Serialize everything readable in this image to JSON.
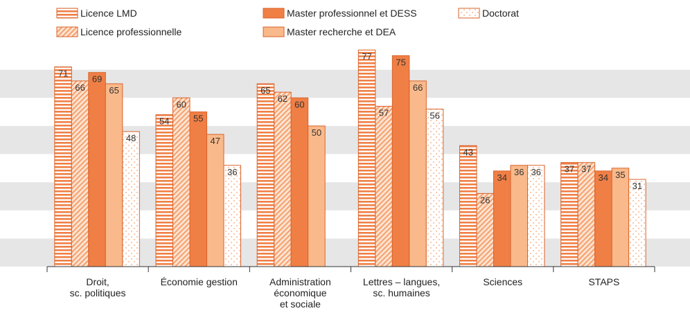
{
  "chart_data": {
    "type": "bar",
    "categories": [
      "Droit,\nsc. politiques",
      "Économie gestion",
      "Administration\néconomique\net sociale",
      "Lettres – langues,\nsc. humaines",
      "Sciences",
      "STAPS"
    ],
    "series": [
      {
        "name": "Licence LMD",
        "color": "#f07f45",
        "pattern": "stripes",
        "values": [
          71,
          54,
          65,
          77,
          43,
          37
        ]
      },
      {
        "name": "Licence professionnelle",
        "color": "#f5a06e",
        "pattern": "hatch",
        "values": [
          66,
          60,
          62,
          57,
          26,
          37
        ]
      },
      {
        "name": "Master professionnel et DESS",
        "color": "#f07f45",
        "pattern": "solid",
        "values": [
          69,
          55,
          60,
          75,
          34,
          34
        ]
      },
      {
        "name": "Master recherche et DEA",
        "color": "#f9b98a",
        "pattern": "solid",
        "values": [
          65,
          47,
          50,
          66,
          36,
          35
        ]
      },
      {
        "name": "Doctorat",
        "color": "#f5a06e",
        "pattern": "dots",
        "values": [
          48,
          36,
          null,
          56,
          36,
          31
        ]
      }
    ],
    "ylim": [
      0,
      80
    ],
    "yticks": [
      0,
      10,
      20,
      30,
      40,
      50,
      60,
      70,
      80
    ],
    "grid": "bands"
  }
}
